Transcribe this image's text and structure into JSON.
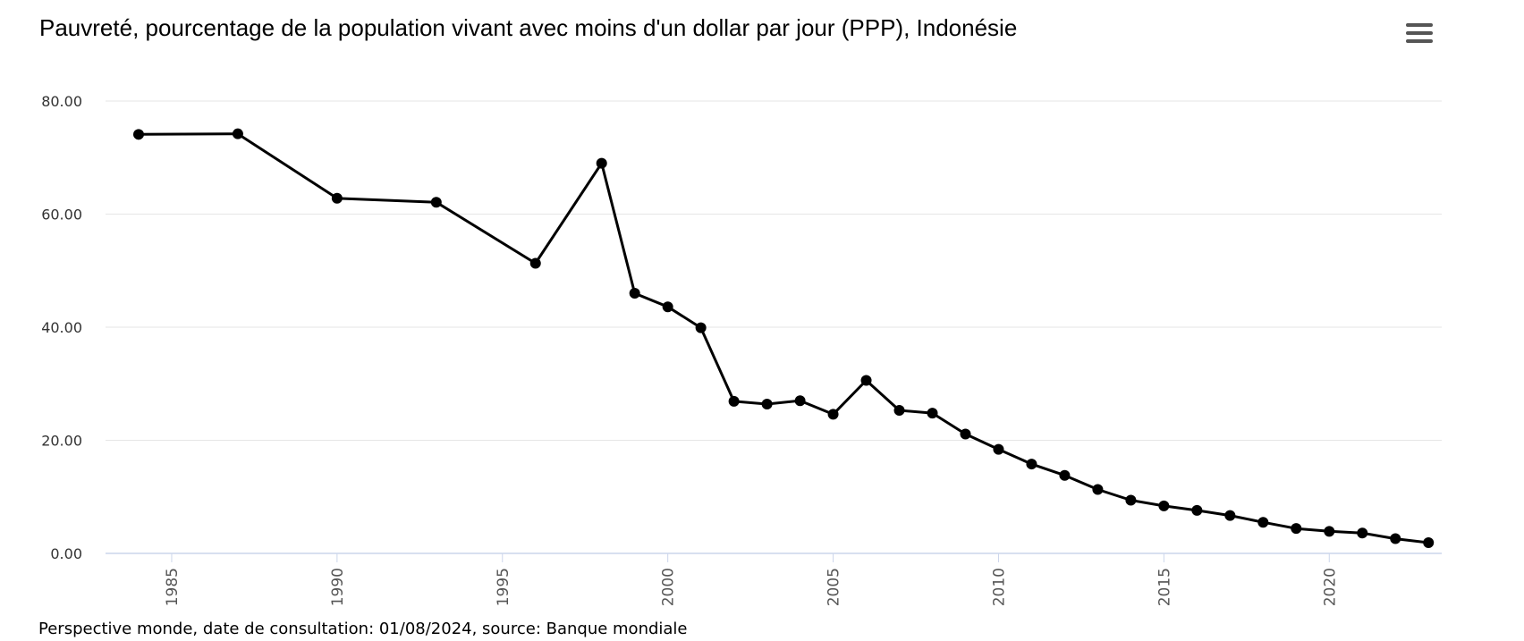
{
  "chart_data": {
    "type": "line",
    "title": "Pauvreté, pourcentage de la population vivant avec moins d'un dollar par jour (PPP), Indonésie",
    "xlabel": "",
    "ylabel": "",
    "ylim": [
      0,
      80
    ],
    "xlim": [
      1983,
      2023.4
    ],
    "yticks": [
      "0.00",
      "20.00",
      "40.00",
      "60.00",
      "80.00"
    ],
    "xticks": [
      "1985",
      "1990",
      "1995",
      "2000",
      "2005",
      "2010",
      "2015",
      "2020"
    ],
    "grid": true,
    "legend": "none",
    "series": [
      {
        "color": "#000000",
        "points": [
          {
            "x": 1984,
            "y": 74.1
          },
          {
            "x": 1987,
            "y": 74.2
          },
          {
            "x": 1990,
            "y": 62.8
          },
          {
            "x": 1993,
            "y": 62.1
          },
          {
            "x": 1996,
            "y": 51.3
          },
          {
            "x": 1998,
            "y": 69.0
          },
          {
            "x": 1999,
            "y": 46.0
          },
          {
            "x": 2000,
            "y": 43.6
          },
          {
            "x": 2001,
            "y": 39.9
          },
          {
            "x": 2002,
            "y": 26.9
          },
          {
            "x": 2003,
            "y": 26.4
          },
          {
            "x": 2004,
            "y": 27.0
          },
          {
            "x": 2005,
            "y": 24.6
          },
          {
            "x": 2006,
            "y": 30.6
          },
          {
            "x": 2007,
            "y": 25.3
          },
          {
            "x": 2008,
            "y": 24.8
          },
          {
            "x": 2009,
            "y": 21.1
          },
          {
            "x": 2010,
            "y": 18.4
          },
          {
            "x": 2011,
            "y": 15.8
          },
          {
            "x": 2012,
            "y": 13.8
          },
          {
            "x": 2013,
            "y": 11.3
          },
          {
            "x": 2014,
            "y": 9.4
          },
          {
            "x": 2015,
            "y": 8.4
          },
          {
            "x": 2016,
            "y": 7.6
          },
          {
            "x": 2017,
            "y": 6.7
          },
          {
            "x": 2018,
            "y": 5.5
          },
          {
            "x": 2019,
            "y": 4.4
          },
          {
            "x": 2020,
            "y": 3.9
          },
          {
            "x": 2021,
            "y": 3.6
          },
          {
            "x": 2022,
            "y": 2.6
          },
          {
            "x": 2023,
            "y": 1.9
          }
        ]
      }
    ]
  },
  "source_note": "Perspective monde, date de consultation: 01/08/2024, source: Banque mondiale",
  "menu_icon": "hamburger-menu-icon"
}
